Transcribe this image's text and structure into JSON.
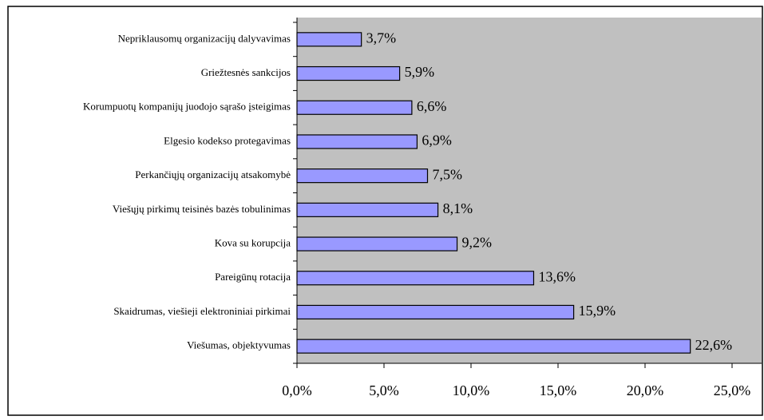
{
  "chart_data": {
    "type": "bar",
    "orientation": "horizontal",
    "categories": [
      "Nepriklausomų organizacijų dalyvavimas",
      "Griežtesnės sankcijos",
      "Korumpuotų kompanijų juodojo sąrašo įsteigimas",
      "Elgesio kodekso protegavimas",
      "Perkančiųjų organizacijų atsakomybė",
      "Viešųjų pirkimų teisinės bazės tobulinimas",
      "Kova su korupcija",
      "Pareigūnų rotacija",
      "Skaidrumas, viešieji elektroniniai pirkimai",
      "Viešumas, objektyvumas"
    ],
    "values": [
      3.7,
      5.9,
      6.6,
      6.9,
      7.5,
      8.1,
      9.2,
      13.6,
      15.9,
      22.6
    ],
    "value_labels": [
      "3,7%",
      "5,9%",
      "6,6%",
      "6,9%",
      "7,5%",
      "8,1%",
      "9,2%",
      "13,6%",
      "15,9%",
      "22,6%"
    ],
    "color": "#9999ff",
    "xlim": [
      0,
      25
    ],
    "xticks": [
      {
        "value": 0,
        "label": "0,0%"
      },
      {
        "value": 5,
        "label": "5,0%"
      },
      {
        "value": 10,
        "label": "10,0%"
      },
      {
        "value": 15,
        "label": "15,0%"
      },
      {
        "value": 20,
        "label": "20,0%"
      },
      {
        "value": 25,
        "label": "25,0%"
      }
    ],
    "plot_background": "#c0c0c0"
  }
}
